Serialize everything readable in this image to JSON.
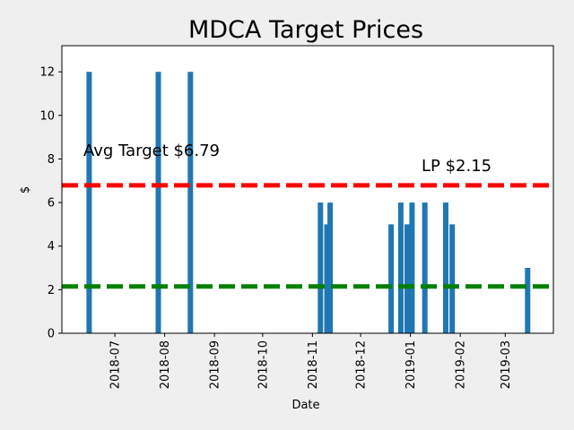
{
  "chart_data": {
    "type": "bar",
    "title": "MDCA Target Prices",
    "xlabel": "Date",
    "ylabel": "$",
    "x_range": [
      "2018-05-29",
      "2019-03-31"
    ],
    "ylim": [
      0,
      13.2
    ],
    "y_ticks": [
      0,
      2,
      4,
      6,
      8,
      10,
      12
    ],
    "x_ticks": [
      "2018-07",
      "2018-08",
      "2018-09",
      "2018-10",
      "2018-11",
      "2018-12",
      "2019-01",
      "2019-02",
      "2019-03"
    ],
    "bars": [
      {
        "date": "2018-06-15",
        "value": 12
      },
      {
        "date": "2018-07-28",
        "value": 12
      },
      {
        "date": "2018-08-17",
        "value": 12
      },
      {
        "date": "2018-11-06",
        "value": 6
      },
      {
        "date": "2018-11-10",
        "value": 5
      },
      {
        "date": "2018-11-12",
        "value": 6
      },
      {
        "date": "2018-12-20",
        "value": 5
      },
      {
        "date": "2018-12-26",
        "value": 6
      },
      {
        "date": "2018-12-30",
        "value": 5
      },
      {
        "date": "2019-01-02",
        "value": 6
      },
      {
        "date": "2019-01-10",
        "value": 6
      },
      {
        "date": "2019-01-23",
        "value": 6
      },
      {
        "date": "2019-01-27",
        "value": 5
      },
      {
        "date": "2019-03-15",
        "value": 3
      }
    ],
    "bar_color": "#1f77b4",
    "reference_lines": [
      {
        "label": "Avg Target $6.79",
        "value": 6.79,
        "color": "#ff0000",
        "style": "dashed",
        "label_placement": "left"
      },
      {
        "label": "LP $2.15",
        "value": 2.15,
        "color": "#008000",
        "style": "dashed",
        "label_placement": "right"
      }
    ]
  }
}
